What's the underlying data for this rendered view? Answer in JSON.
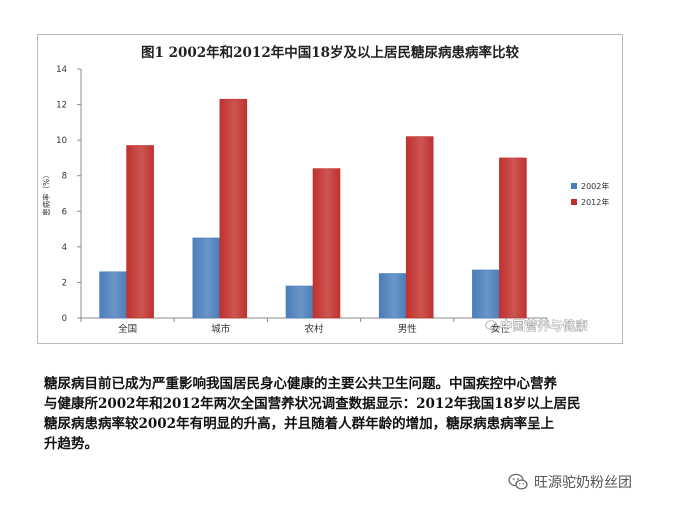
{
  "chart_data": {
    "type": "bar",
    "title": "图1 2002年和2012年中国18岁及以上居民糖尿病患病率比较",
    "ylabel": "患病率（%）",
    "xlabel": "",
    "ylim": [
      0,
      14
    ],
    "yticks": [
      0,
      2,
      4,
      6,
      8,
      10,
      12,
      14
    ],
    "categories": [
      "全国",
      "城市",
      "农村",
      "男性",
      "女性"
    ],
    "series": [
      {
        "name": "2002年",
        "color": "#4a7ebb",
        "values": [
          2.6,
          4.5,
          1.8,
          2.5,
          2.7
        ]
      },
      {
        "name": "2012年",
        "color": "#c0312e",
        "values": [
          9.7,
          12.3,
          8.4,
          10.2,
          9.0
        ]
      }
    ],
    "legend": "right",
    "grid": false,
    "watermark": "中国营养与健康"
  },
  "caption_lines": [
    "糖尿病目前已成为严重影响我国居民身心健康的主要公共卫生问题。中国疾控中心营养",
    "与健康所2002年和2012年两次全国营养状况调查数据显示：2012年我国18岁以上居民",
    "糖尿病患病率较2002年有明显的升高，并且随着人群年龄的增加，糖尿病患病率呈上",
    "升趋势。"
  ],
  "account": {
    "icon": "wechat-icon",
    "name": "旺源驼奶粉丝团"
  }
}
